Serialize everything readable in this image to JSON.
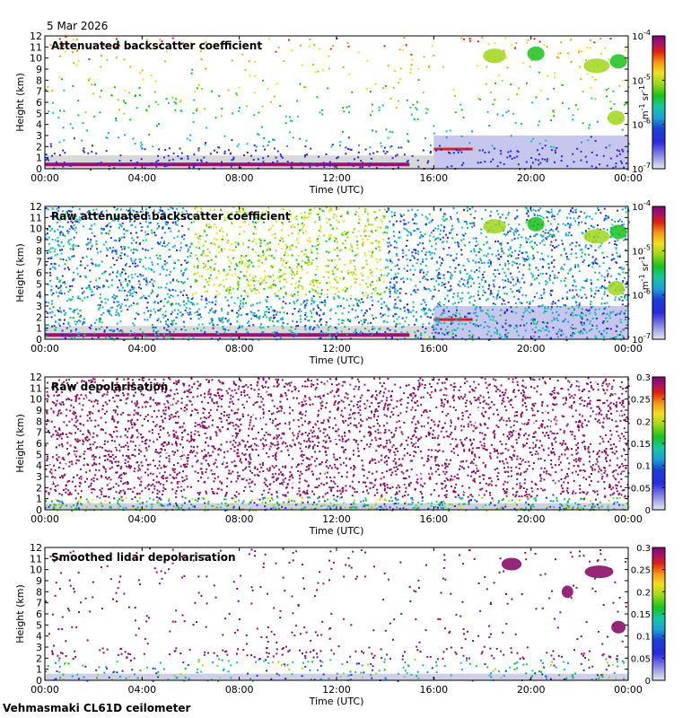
{
  "header": {
    "date": "5 Mar 2026"
  },
  "footer": {
    "instrument": "Vehmasmaki CL61D ceilometer"
  },
  "chart_data": [
    {
      "type": "heatmap",
      "title": "Attenuated backscatter coefficient",
      "xlabel": "Time (UTC)",
      "ylabel": "Height (km)",
      "xticks": [
        "00:00",
        "04:00",
        "08:00",
        "12:00",
        "16:00",
        "20:00",
        "00:00"
      ],
      "xlim": [
        0,
        24
      ],
      "ylim": [
        0,
        12
      ],
      "yticks": [
        0,
        1,
        2,
        3,
        4,
        5,
        6,
        7,
        8,
        9,
        10,
        11,
        12
      ],
      "colorbar": {
        "scale": "log",
        "min": 1e-07,
        "max": 0.0001,
        "ticks": [
          "10-7",
          "10-6",
          "10-5",
          "10-4"
        ],
        "label": "m-1 sr-1",
        "colormap": "chiljet"
      },
      "features": "Boundary layer below ~0.6 km 00-16 UTC; cloud layer near 1.8 km 16-17.5 UTC; mid/high cloud patches 7-11 km after 18 UTC; background noise removed",
      "grid": false,
      "legend": "colorbar-right"
    },
    {
      "type": "heatmap",
      "title": "Raw attenuated backscatter coefficient",
      "xlabel": "Time (UTC)",
      "ylabel": "Height (km)",
      "xticks": [
        "00:00",
        "04:00",
        "08:00",
        "12:00",
        "16:00",
        "20:00",
        "00:00"
      ],
      "xlim": [
        0,
        24
      ],
      "ylim": [
        0,
        12
      ],
      "yticks": [
        0,
        1,
        2,
        3,
        4,
        5,
        6,
        7,
        8,
        9,
        10,
        11,
        12
      ],
      "colorbar": {
        "scale": "log",
        "min": 1e-07,
        "max": 0.0001,
        "ticks": [
          "10-7",
          "10-6",
          "10-5",
          "10-4"
        ],
        "label": "m-1 sr-1",
        "colormap": "chiljet"
      },
      "features": "Noisy raw signal filling 0-12 km; green/yellow noise peak 06-14 UTC above 4 km; cloud layer near 1.8 km 16-17.5 UTC",
      "grid": false,
      "legend": "colorbar-right"
    },
    {
      "type": "heatmap",
      "title": "Raw depolarisation",
      "xlabel": "Time (UTC)",
      "ylabel": "Height (km)",
      "xticks": [
        "00:00",
        "04:00",
        "08:00",
        "12:00",
        "16:00",
        "20:00",
        "00:00"
      ],
      "xlim": [
        0,
        24
      ],
      "ylim": [
        0,
        12
      ],
      "yticks": [
        0,
        1,
        2,
        3,
        4,
        5,
        6,
        7,
        8,
        9,
        10,
        11,
        12
      ],
      "colorbar": {
        "scale": "linear",
        "min": 0,
        "max": 0.3,
        "ticks": [
          "0",
          "0.05",
          "0.1",
          "0.15",
          "0.2",
          "0.25",
          "0.3"
        ],
        "colormap": "chiljet"
      },
      "features": "Saturated noise (>=0.3) throughout most of the profile; low values below ~1.5 km",
      "grid": false,
      "legend": "colorbar-right"
    },
    {
      "type": "heatmap",
      "title": "Smoothed lidar depolarisation",
      "xlabel": "Time (UTC)",
      "ylabel": "Height (km)",
      "xticks": [
        "00:00",
        "04:00",
        "08:00",
        "12:00",
        "16:00",
        "20:00",
        "00:00"
      ],
      "xlim": [
        0,
        24
      ],
      "ylim": [
        0,
        12
      ],
      "yticks": [
        0,
        1,
        2,
        3,
        4,
        5,
        6,
        7,
        8,
        9,
        10,
        11,
        12
      ],
      "colorbar": {
        "scale": "linear",
        "min": 0,
        "max": 0.3,
        "ticks": [
          "0",
          "0.05",
          "0.1",
          "0.15",
          "0.2",
          "0.25",
          "0.3"
        ],
        "colormap": "chiljet"
      },
      "features": "Low depolarisation in boundary layer; high depolarisation cloud patches 9-11 km after 18 UTC and near 4-5 km at end of day",
      "grid": false,
      "legend": "colorbar-right"
    }
  ]
}
